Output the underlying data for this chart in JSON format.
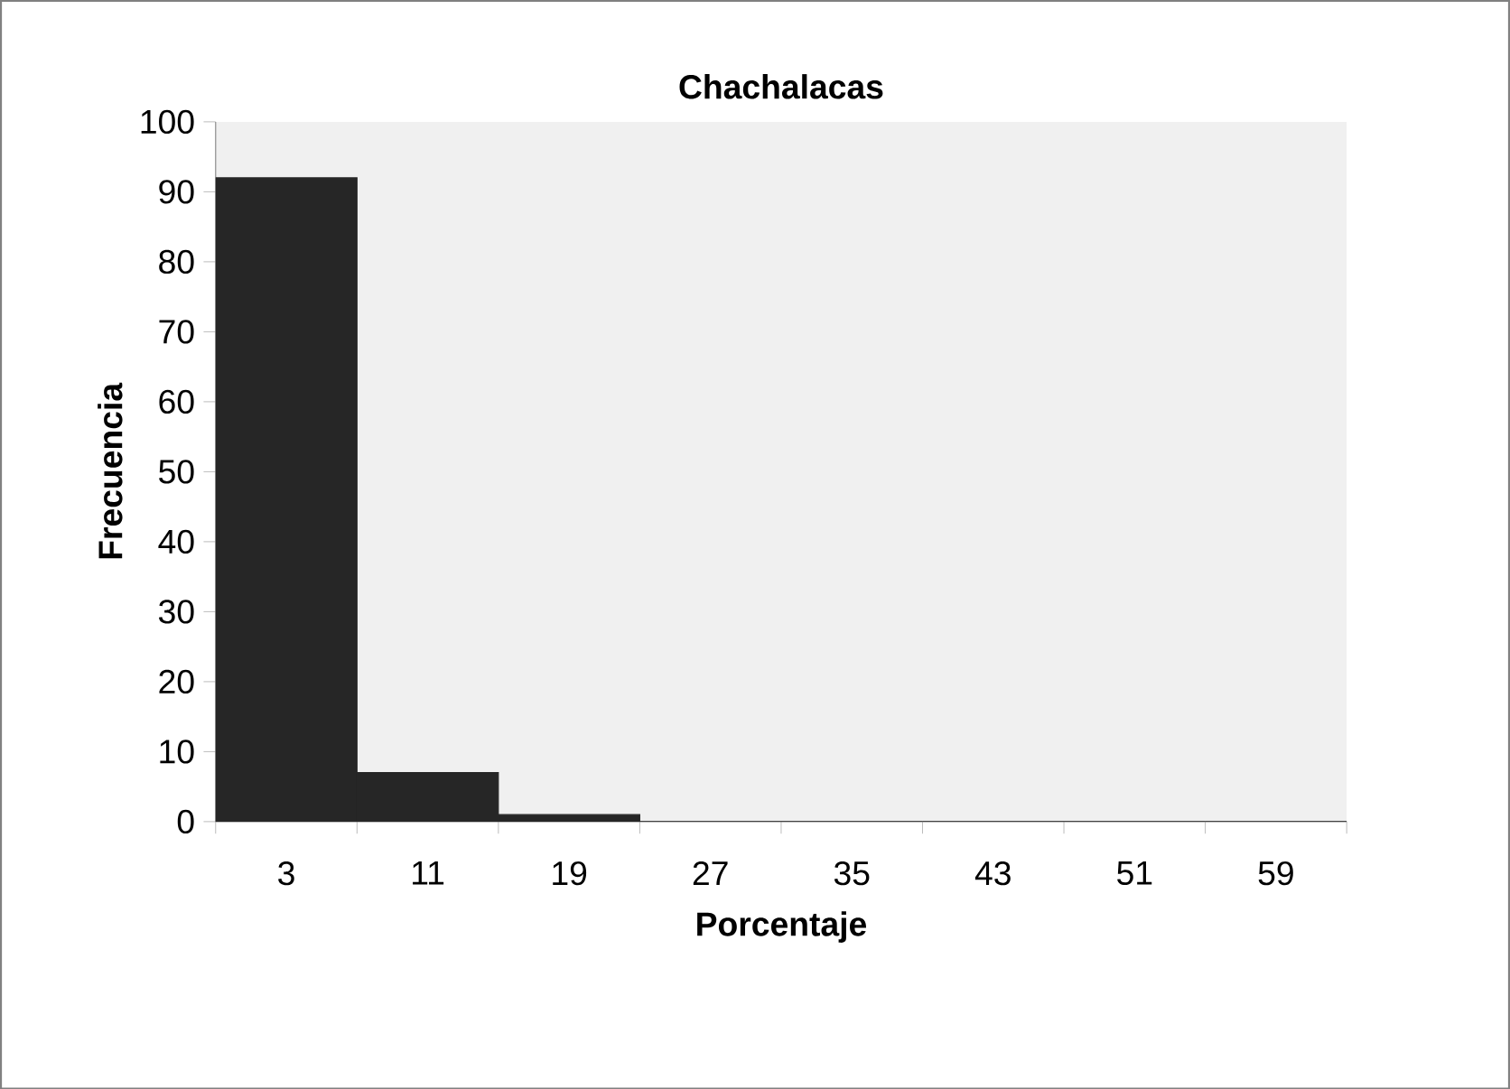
{
  "chart_data": {
    "type": "bar",
    "title": "Chachalacas",
    "xlabel": "Porcentaje",
    "ylabel": "Frecuencia",
    "categories": [
      "3",
      "11",
      "19",
      "27",
      "35",
      "43",
      "51",
      "59"
    ],
    "values": [
      92,
      7,
      1,
      0,
      0,
      0,
      0,
      0
    ],
    "color": "#262626",
    "ylim": [
      0,
      100
    ],
    "yticks": [
      0,
      10,
      20,
      30,
      40,
      50,
      60,
      70,
      80,
      90,
      100
    ]
  }
}
